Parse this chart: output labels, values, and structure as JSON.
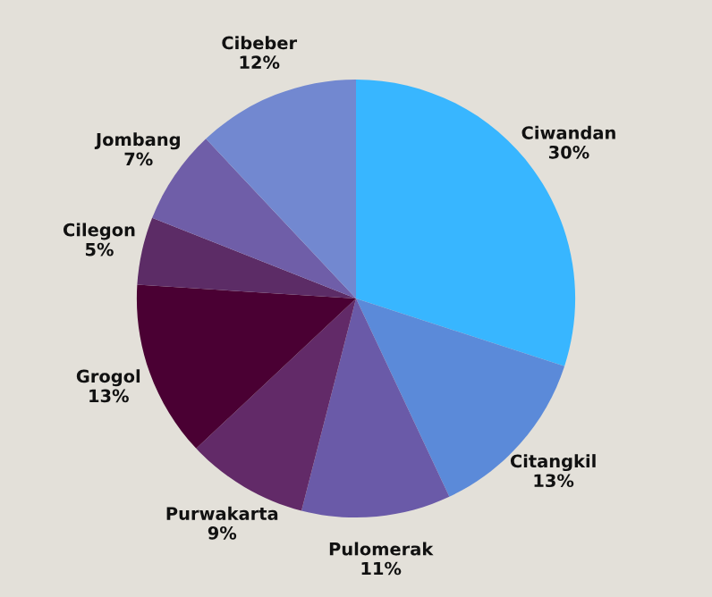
{
  "chart_data": {
    "type": "pie",
    "categories": [
      "Ciwandan",
      "Citangkil",
      "Pulomerak",
      "Purwakarta",
      "Grogol",
      "Cilegon",
      "Jombang",
      "Cibeber"
    ],
    "values": [
      30,
      13,
      11,
      9,
      13,
      5,
      7,
      12
    ],
    "colors": [
      "#38b6ff",
      "#5b8ad9",
      "#6a5aa8",
      "#622a68",
      "#4a0033",
      "#5c2c66",
      "#6f5ea8",
      "#7288d0"
    ],
    "value_labels": [
      "30%",
      "13%",
      "11%",
      "9%",
      "13%",
      "5%",
      "7%",
      "12%"
    ]
  }
}
